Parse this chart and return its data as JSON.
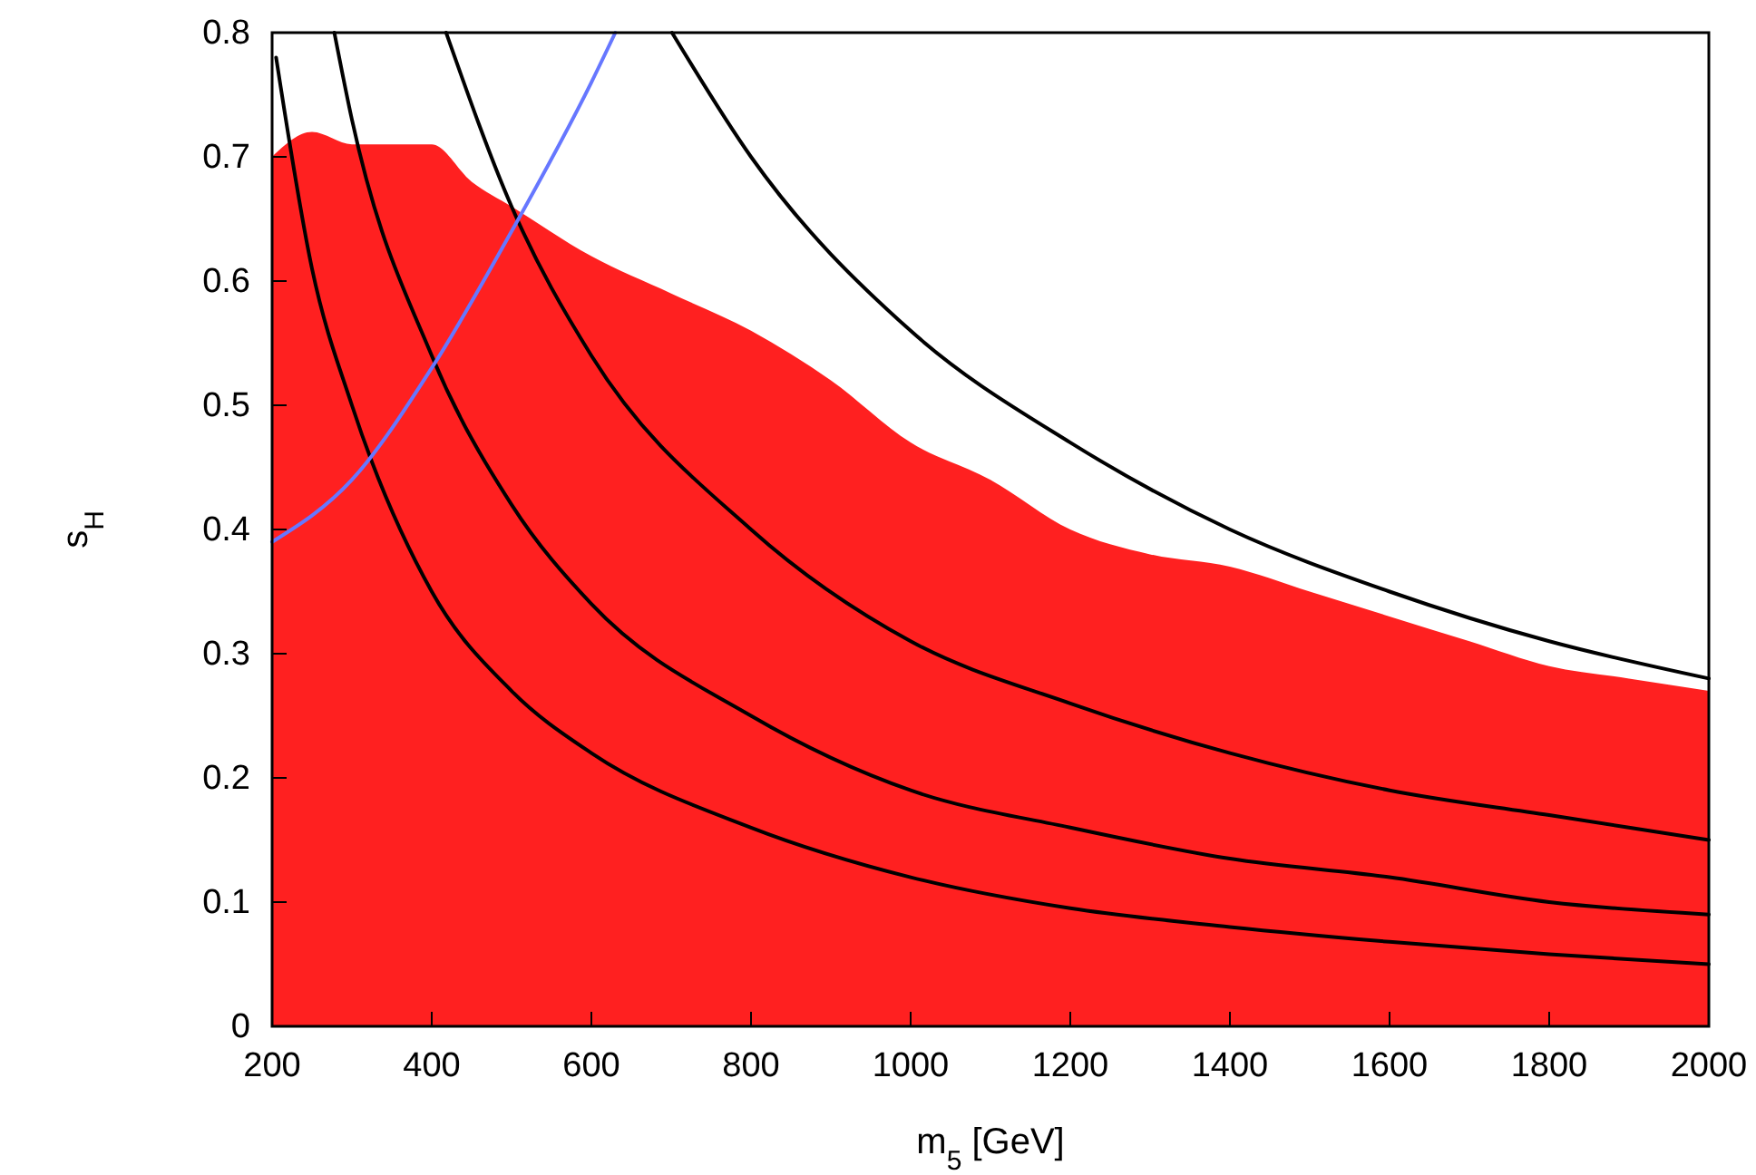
{
  "chart_data": {
    "type": "line",
    "xlabel": "m$_{5}$  [GeV]",
    "ylabel": "s$_{H}$",
    "xlim": [
      200,
      2000
    ],
    "ylim": [
      0,
      0.8
    ],
    "xticks": [
      200,
      400,
      600,
      800,
      1000,
      1200,
      1400,
      1600,
      1800,
      2000
    ],
    "yticks": [
      0,
      0.1,
      0.2,
      0.3,
      0.4,
      0.5,
      0.6,
      0.7,
      0.8
    ],
    "grid": false,
    "marker": "none",
    "line_style": "solid",
    "series": [
      {
        "type": "area",
        "color": "#ff2020",
        "x": [
          200,
          250,
          300,
          400,
          450,
          500,
          600,
          700,
          800,
          900,
          1000,
          1100,
          1200,
          1300,
          1400,
          1500,
          1600,
          1700,
          1800,
          1900,
          2000
        ],
        "values": [
          0.7,
          0.72,
          0.71,
          0.71,
          0.68,
          0.66,
          0.62,
          0.59,
          0.56,
          0.52,
          0.47,
          0.44,
          0.4,
          0.38,
          0.37,
          0.35,
          0.33,
          0.31,
          0.29,
          0.28,
          0.27
        ]
      },
      {
        "color": "#000000",
        "x": [
          205,
          250,
          300,
          400,
          500,
          600,
          800,
          1000,
          1200,
          1400,
          1600,
          1800,
          2000
        ],
        "values": [
          0.78,
          0.61,
          0.5,
          0.35,
          0.27,
          0.22,
          0.16,
          0.12,
          0.095,
          0.08,
          0.068,
          0.058,
          0.05
        ]
      },
      {
        "color": "#000000",
        "x": [
          278,
          300,
          400,
          500,
          600,
          800,
          1000,
          1200,
          1400,
          1600,
          1800,
          2000
        ],
        "values": [
          0.8,
          0.73,
          0.54,
          0.42,
          0.34,
          0.25,
          0.19,
          0.16,
          0.135,
          0.12,
          0.1,
          0.09
        ]
      },
      {
        "color": "#000000",
        "x": [
          418,
          500,
          600,
          800,
          1000,
          1200,
          1400,
          1600,
          1800,
          2000
        ],
        "values": [
          0.8,
          0.66,
          0.54,
          0.4,
          0.31,
          0.26,
          0.22,
          0.19,
          0.17,
          0.15
        ]
      },
      {
        "color": "#000000",
        "x": [
          701,
          800,
          1000,
          1200,
          1400,
          1600,
          1800,
          2000
        ],
        "values": [
          0.8,
          0.7,
          0.56,
          0.47,
          0.4,
          0.35,
          0.31,
          0.28
        ]
      },
      {
        "color": "#6677ff",
        "x": [
          200,
          300,
          400,
          500,
          600,
          630
        ],
        "values": [
          0.39,
          0.44,
          0.53,
          0.64,
          0.76,
          0.8
        ]
      }
    ]
  }
}
